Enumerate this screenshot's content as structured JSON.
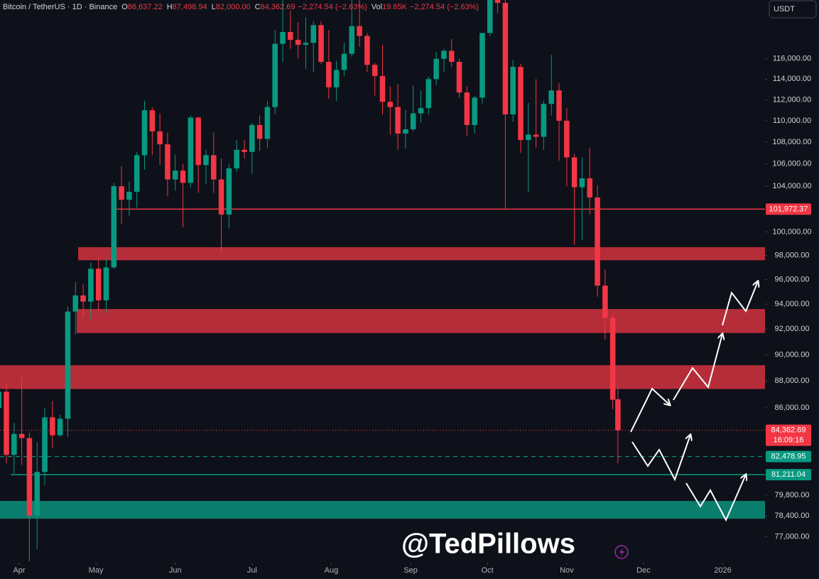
{
  "chart_data": {
    "type": "candlestick",
    "legend": {
      "title": "Bitcoin / TetherUS · 1D · Binance",
      "fields": [
        {
          "key": "O",
          "value": "86,637.22"
        },
        {
          "key": "H",
          "value": "87,498.94"
        },
        {
          "key": "L",
          "value": "82,000.00"
        },
        {
          "key": "C",
          "value": "84,362.69"
        },
        {
          "key": "",
          "value": "−2,274.54 (−2.63%)"
        },
        {
          "key": "Vol",
          "value": "19.65K"
        },
        {
          "key": "",
          "value": "−2,274.54 (−2.63%)"
        }
      ]
    },
    "currency_button": "USDT",
    "watermark": "@TedPillows",
    "countdown": "16:09:16",
    "up_color": "#089981",
    "down_color": "#f23645",
    "log": true,
    "ylim": [
      75400,
      122000
    ],
    "xlim": [
      0.5,
      299.5
    ],
    "yticks": [
      {
        "value": 116000,
        "label": "116,000.00"
      },
      {
        "value": 114000,
        "label": "114,000.00"
      },
      {
        "value": 112000,
        "label": "112,000.00"
      },
      {
        "value": 110000,
        "label": "110,000.00"
      },
      {
        "value": 108000,
        "label": "108,000.00"
      },
      {
        "value": 106000,
        "label": "106,000.00"
      },
      {
        "value": 104000,
        "label": "104,000.00"
      },
      {
        "value": 100000,
        "label": "100,000.00"
      },
      {
        "value": 98000,
        "label": "98,000.00"
      },
      {
        "value": 96000,
        "label": "96,000.00"
      },
      {
        "value": 94000,
        "label": "94,000.00"
      },
      {
        "value": 92000,
        "label": "92,000.00"
      },
      {
        "value": 90000,
        "label": "90,000.00"
      },
      {
        "value": 88000,
        "label": "88,000.00"
      },
      {
        "value": 86000,
        "label": "86,000.00"
      },
      {
        "value": 79800,
        "label": "79,800.00"
      },
      {
        "value": 78400,
        "label": "78,400.00"
      },
      {
        "value": 77000,
        "label": "77,000.00"
      }
    ],
    "xticks": [
      {
        "value": 8,
        "label": "Apr"
      },
      {
        "value": 38,
        "label": "May"
      },
      {
        "value": 69,
        "label": "Jun"
      },
      {
        "value": 99,
        "label": "Jul"
      },
      {
        "value": 130,
        "label": "Aug"
      },
      {
        "value": 161,
        "label": "Sep"
      },
      {
        "value": 191,
        "label": "Oct"
      },
      {
        "value": 222,
        "label": "Nov"
      },
      {
        "value": 252,
        "label": "Dec"
      },
      {
        "value": 283,
        "label": "2026"
      }
    ],
    "zones": [
      {
        "low": 97600,
        "high": 98700,
        "color": "#c8313d"
      },
      {
        "low": 91700,
        "high": 93600,
        "color": "#c8313d"
      },
      {
        "low": 87400,
        "high": 89200,
        "color": "#c8313d"
      },
      {
        "low": 78200,
        "high": 79400,
        "color": "#0b8a75"
      }
    ],
    "price_lines": [
      {
        "value": 101972.37,
        "label": "101,972.37",
        "color": "#f23645",
        "style": "solid"
      },
      {
        "value": 84362.69,
        "label": "84,362.69",
        "color": "#f23645",
        "style": "dotted"
      },
      {
        "value": 82478.95,
        "label": "82,478.95",
        "color": "#089981",
        "style": "dashed"
      },
      {
        "value": 81211.04,
        "label": "81,211.04",
        "color": "#089981",
        "style": "solid"
      }
    ],
    "x": [
      0,
      3,
      6,
      9,
      12,
      15,
      18,
      21,
      24,
      27,
      30,
      33,
      36,
      39,
      42,
      45,
      48,
      51,
      54,
      57,
      60,
      63,
      66,
      69,
      72,
      75,
      78,
      81,
      84,
      87,
      90,
      93,
      96,
      99,
      102,
      105,
      108,
      111,
      114,
      117,
      120,
      123,
      126,
      129,
      132,
      135,
      138,
      141,
      144,
      147,
      150,
      153,
      156,
      159,
      162,
      165,
      168,
      171,
      174,
      177,
      180,
      183,
      186,
      189,
      192,
      195,
      198,
      201,
      204,
      207,
      210,
      213,
      216,
      219,
      222,
      225,
      228,
      231,
      234,
      237,
      240,
      242
    ],
    "ohlc": [
      [
        86000,
        88700,
        85600,
        87200
      ],
      [
        87200,
        87800,
        82000,
        82600
      ],
      [
        82600,
        84900,
        81300,
        84100
      ],
      [
        84100,
        88500,
        81900,
        83800
      ],
      [
        83800,
        84200,
        74500,
        78400
      ],
      [
        78400,
        83500,
        76200,
        81400
      ],
      [
        81400,
        86000,
        80500,
        85300
      ],
      [
        85300,
        86500,
        83100,
        84000
      ],
      [
        84000,
        85500,
        83900,
        85200
      ],
      [
        85200,
        93800,
        83900,
        93400
      ],
      [
        93400,
        95800,
        91600,
        94700
      ],
      [
        94700,
        95600,
        92900,
        94200
      ],
      [
        94200,
        97400,
        92800,
        96900
      ],
      [
        96900,
        97900,
        93500,
        94300
      ],
      [
        94300,
        97700,
        93300,
        97000
      ],
      [
        97000,
        104300,
        96900,
        104000
      ],
      [
        104000,
        105800,
        100700,
        102800
      ],
      [
        102800,
        104400,
        101400,
        103500
      ],
      [
        103500,
        107100,
        102100,
        106800
      ],
      [
        106800,
        111900,
        105500,
        111000
      ],
      [
        111000,
        111300,
        106800,
        109000
      ],
      [
        109000,
        110700,
        105900,
        107800
      ],
      [
        107800,
        108900,
        103100,
        104600
      ],
      [
        104600,
        106800,
        103600,
        105400
      ],
      [
        105400,
        106000,
        100400,
        104300
      ],
      [
        104300,
        110500,
        103900,
        110300
      ],
      [
        110300,
        110400,
        103400,
        105900
      ],
      [
        105900,
        107300,
        104200,
        106800
      ],
      [
        106800,
        108900,
        103400,
        104600
      ],
      [
        104600,
        106500,
        98200,
        101500
      ],
      [
        101500,
        106000,
        100300,
        105600
      ],
      [
        105600,
        108200,
        105300,
        107300
      ],
      [
        107300,
        108200,
        106500,
        107100
      ],
      [
        107100,
        109800,
        105100,
        109600
      ],
      [
        109600,
        110500,
        107200,
        108300
      ],
      [
        108300,
        111900,
        107500,
        111300
      ],
      [
        111300,
        118900,
        110600,
        117500
      ],
      [
        117500,
        123200,
        115700,
        118700
      ],
      [
        118700,
        120900,
        117000,
        117900
      ],
      [
        117900,
        119700,
        116000,
        117400
      ],
      [
        117400,
        120200,
        115000,
        117600
      ],
      [
        117600,
        119800,
        114700,
        119400
      ],
      [
        119400,
        119800,
        115500,
        115700
      ],
      [
        115700,
        118900,
        112100,
        113200
      ],
      [
        113200,
        115800,
        111900,
        114900
      ],
      [
        114900,
        117600,
        114300,
        116500
      ],
      [
        116500,
        122300,
        116200,
        119300
      ],
      [
        119300,
        124500,
        117200,
        118300
      ],
      [
        118300,
        118600,
        114700,
        115400
      ],
      [
        115400,
        115600,
        112400,
        114300
      ],
      [
        114300,
        117400,
        110600,
        111800
      ],
      [
        111800,
        113300,
        108700,
        111300
      ],
      [
        111300,
        113500,
        107300,
        108800
      ],
      [
        108800,
        111000,
        107400,
        109200
      ],
      [
        109200,
        113400,
        109000,
        110700
      ],
      [
        110700,
        112900,
        109800,
        111200
      ],
      [
        111200,
        114300,
        110600,
        114000
      ],
      [
        114000,
        116700,
        113400,
        116000
      ],
      [
        116000,
        117000,
        114700,
        116800
      ],
      [
        116800,
        118000,
        115200,
        115700
      ],
      [
        115700,
        116000,
        112200,
        112700
      ],
      [
        112700,
        113300,
        108600,
        109600
      ],
      [
        109600,
        112400,
        108800,
        112200
      ],
      [
        112200,
        118600,
        111600,
        118600
      ],
      [
        118600,
        123900,
        118300,
        123500
      ],
      [
        123500,
        126200,
        120600,
        121700
      ],
      [
        121700,
        123800,
        102000,
        110600
      ],
      [
        110600,
        115900,
        109900,
        115200
      ],
      [
        115200,
        115500,
        107000,
        108200
      ],
      [
        108200,
        111700,
        103500,
        108700
      ],
      [
        108700,
        114000,
        107500,
        108500
      ],
      [
        108500,
        111900,
        107300,
        111600
      ],
      [
        111600,
        116400,
        110500,
        112900
      ],
      [
        112900,
        113600,
        106300,
        110000
      ],
      [
        110000,
        111200,
        104000,
        106600
      ],
      [
        106600,
        106900,
        98900,
        103900
      ],
      [
        103900,
        106600,
        99300,
        104700
      ],
      [
        104700,
        107500,
        101500,
        103000
      ],
      [
        103000,
        104100,
        94600,
        95500
      ],
      [
        95500,
        96800,
        91200,
        92900
      ],
      [
        92900,
        93200,
        85900,
        86600
      ],
      [
        86637.22,
        87498.94,
        82000,
        84362.69
      ]
    ]
  }
}
